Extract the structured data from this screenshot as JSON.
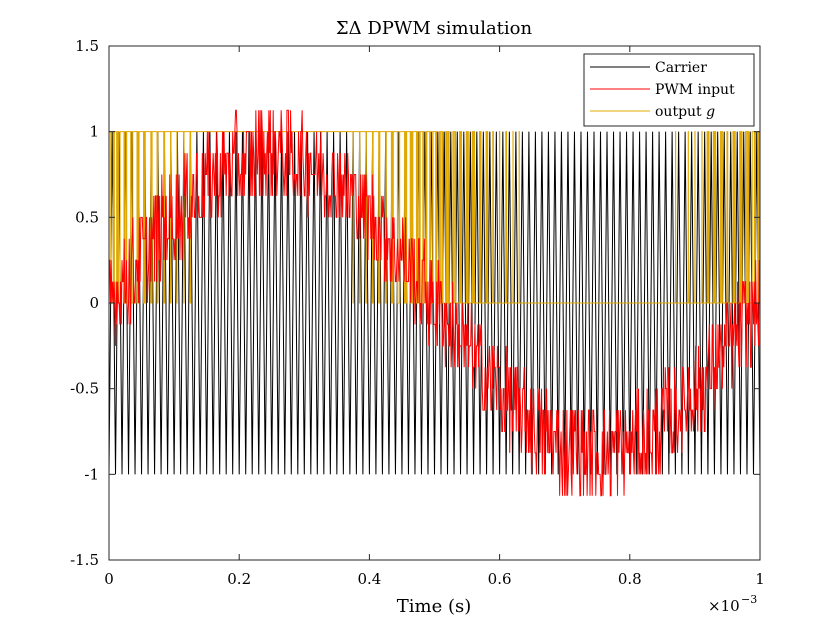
{
  "chart_data": {
    "type": "line",
    "title": "ΣΔ DPWM simulation",
    "xlabel": "Time (s)",
    "ylabel": "",
    "x_exponent_label": "×10",
    "x_exponent_power": "−3",
    "xlim": [
      0,
      1
    ],
    "ylim": [
      -1.5,
      1.5
    ],
    "x_unit_scale": 0.001,
    "xticks": [
      0,
      0.2,
      0.4,
      0.6,
      0.8,
      1
    ],
    "xtick_labels": [
      "0",
      "0.2",
      "0.4",
      "0.6",
      "0.8",
      "1"
    ],
    "yticks": [
      -1.5,
      -1,
      -0.5,
      0,
      0.5,
      1,
      1.5
    ],
    "ytick_labels": [
      "-1.5",
      "-1",
      "-0.5",
      "0",
      "0.5",
      "1",
      "1.5"
    ],
    "legend_position": "top-right",
    "series": [
      {
        "name": "Carrier",
        "color": "#000000",
        "kind": "triangle",
        "periods": 100,
        "min": -1,
        "max": 1
      },
      {
        "name": "PWM input",
        "color": "#ff0000",
        "kind": "quantized-sine",
        "amplitude": 0.875,
        "frequency_periods": 1,
        "quantization_step": 0.125,
        "dither": 0.25,
        "min": -1.125,
        "max": 1.125
      },
      {
        "name": "output g",
        "name_text": "output ",
        "name_italic": "g",
        "color": "#e0a800",
        "kind": "pwm",
        "levels": [
          0,
          1
        ]
      }
    ]
  }
}
